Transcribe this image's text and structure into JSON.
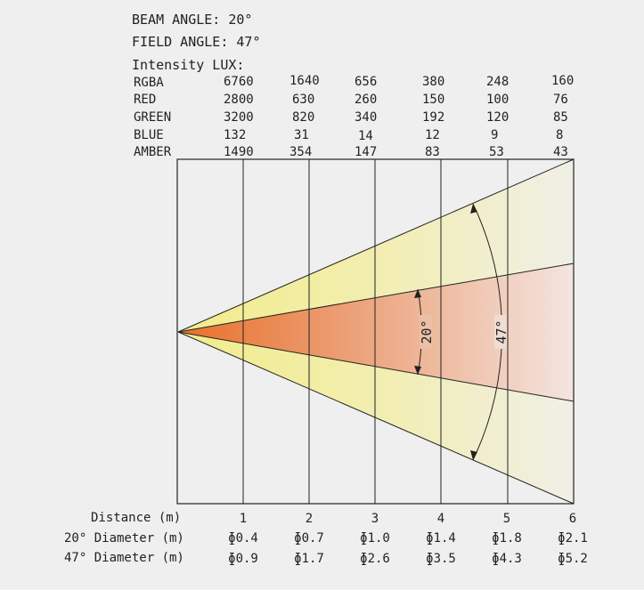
{
  "header": {
    "beam_angle": "BEAM ANGLE: 20°",
    "field_angle": "FIELD ANGLE: 47°",
    "intensity_label": "Intensity LUX:"
  },
  "lux_table": {
    "rows": [
      {
        "label": "RGBA",
        "values": [
          "6760",
          "1640",
          "656",
          "380",
          "248",
          "160"
        ]
      },
      {
        "label": "RED",
        "values": [
          "2800",
          "630",
          "260",
          "150",
          "100",
          "76"
        ]
      },
      {
        "label": "GREEN",
        "values": [
          "3200",
          "820",
          "340",
          "192",
          "120",
          "85"
        ]
      },
      {
        "label": "BLUE",
        "values": [
          "132",
          "31",
          "14",
          "12",
          "9",
          "8"
        ]
      },
      {
        "label": "AMBER",
        "values": [
          "1490",
          "354",
          "147",
          "83",
          "53",
          "43"
        ]
      }
    ]
  },
  "diagram": {
    "beam_angle_label": "20°",
    "field_angle_label": "47°",
    "colors": {
      "field_cone": "#f2ee9a",
      "beam_cone_start": "#e8772f",
      "beam_cone_end": "#f3e0d8",
      "line": "#222222",
      "background": "#efefef"
    }
  },
  "footer": {
    "distance_label": "Distance (m)",
    "distances": [
      "1",
      "2",
      "3",
      "4",
      "5",
      "6"
    ],
    "beam_diameter_label": "20° Diameter (m)",
    "beam_diameters": [
      "ɸ0.4",
      "ɸ0.7",
      "ɸ1.0",
      "ɸ1.4",
      "ɸ1.8",
      "ɸ2.1"
    ],
    "field_diameter_label": "47° Diameter (m)",
    "field_diameters": [
      "ɸ0.9",
      "ɸ1.7",
      "ɸ2.6",
      "ɸ3.5",
      "ɸ4.3",
      "ɸ5.2"
    ]
  }
}
